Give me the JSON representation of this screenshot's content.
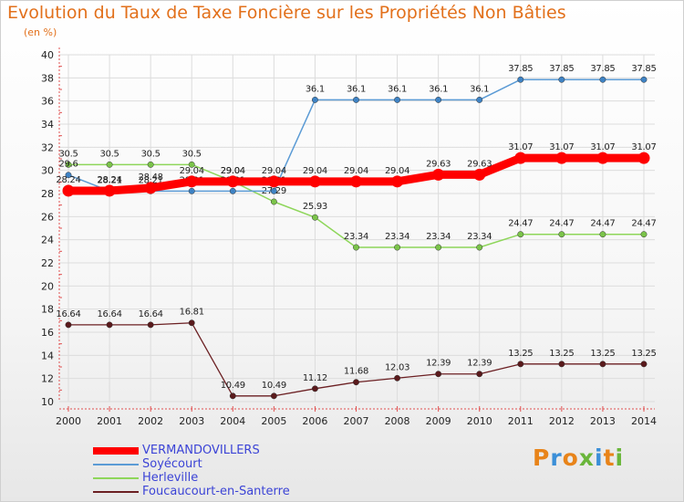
{
  "title": "Evolution du Taux de Taxe Foncière sur les Propriétés Non Bâties",
  "subtitle": "(en %)",
  "logo": {
    "letters": [
      "P",
      "r",
      "o",
      "x",
      "i",
      "t",
      "i"
    ],
    "colors": [
      "#e8841a",
      "#3b8fd8",
      "#e8841a",
      "#6ab63b",
      "#3b8fd8",
      "#e8841a",
      "#6ab63b"
    ]
  },
  "chart_data": {
    "type": "line",
    "x": [
      "2000",
      "2001",
      "2002",
      "2003",
      "2004",
      "2005",
      "2006",
      "2007",
      "2008",
      "2009",
      "2010",
      "2011",
      "2012",
      "2013",
      "2014"
    ],
    "ylim": [
      10,
      40
    ],
    "yticks": [
      "10",
      "12",
      "14",
      "16",
      "18",
      "20",
      "22",
      "24",
      "26",
      "28",
      "30",
      "32",
      "34",
      "36",
      "38",
      "40"
    ],
    "grid": true,
    "legend_position": "bottom-left",
    "series": [
      {
        "name": "Foucaucourt-en-Santerre",
        "color": "#6b1f22",
        "marker": "#5a1a1c",
        "width": 1.3,
        "values": [
          16.64,
          16.64,
          16.64,
          16.81,
          10.49,
          10.49,
          11.12,
          11.68,
          12.03,
          12.39,
          12.39,
          13.25,
          13.25,
          13.25,
          13.25
        ],
        "labels": [
          "16.64",
          "16.64",
          "16.64",
          "16.81",
          "10.49",
          "10.49",
          "11.12",
          "11.68",
          "12.03",
          "12.39",
          "12.39",
          "13.25",
          "13.25",
          "13.25",
          "13.25"
        ]
      },
      {
        "name": "Herleville",
        "color": "#8ed65a",
        "marker": "#7bc44a",
        "width": 1.5,
        "values": [
          30.5,
          30.5,
          30.5,
          30.5,
          29.04,
          27.29,
          25.93,
          23.34,
          23.34,
          23.34,
          23.34,
          24.47,
          24.47,
          24.47,
          24.47
        ],
        "labels": [
          "30.5",
          "30.5",
          "30.5",
          "30.5",
          "29.04",
          "27.29",
          "25.93",
          "23.34",
          "23.34",
          "23.34",
          "23.34",
          "24.47",
          "24.47",
          "24.47",
          "24.47"
        ]
      },
      {
        "name": "Soyécourt",
        "color": "#5b9bd5",
        "marker": "#3f83c4",
        "width": 1.5,
        "values": [
          29.6,
          28.21,
          28.21,
          28.21,
          28.21,
          28.21,
          36.1,
          36.1,
          36.1,
          36.1,
          36.1,
          37.85,
          37.85,
          37.85,
          37.85
        ],
        "labels": [
          "29.6",
          "28.21",
          "28.21",
          "28.21",
          "28.21",
          "28.21",
          "36.1",
          "36.1",
          "36.1",
          "36.1",
          "36.1",
          "37.85",
          "37.85",
          "37.85",
          "37.85"
        ]
      },
      {
        "name": "VERMANDOVILLERS",
        "color": "#ff0000",
        "marker": "#ff0000",
        "width": 9,
        "values": [
          28.24,
          28.24,
          28.48,
          29.04,
          29.04,
          29.04,
          29.04,
          29.04,
          29.04,
          29.63,
          29.63,
          31.07,
          31.07,
          31.07,
          31.07
        ],
        "labels": [
          "28.24",
          "28.24",
          "28.48",
          "29.04",
          "29.04",
          "29.04",
          "29.04",
          "29.04",
          "29.04",
          "29.63",
          "29.63",
          "31.07",
          "31.07",
          "31.07",
          "31.07"
        ]
      }
    ]
  },
  "legend": [
    {
      "label": "VERMANDOVILLERS",
      "color": "#ff0000",
      "thickness": 8
    },
    {
      "label": "Soyécourt",
      "color": "#5b9bd5",
      "thickness": 2
    },
    {
      "label": "Herleville",
      "color": "#8ed65a",
      "thickness": 2
    },
    {
      "label": "Foucaucourt-en-Santerre",
      "color": "#6b1f22",
      "thickness": 2
    }
  ]
}
